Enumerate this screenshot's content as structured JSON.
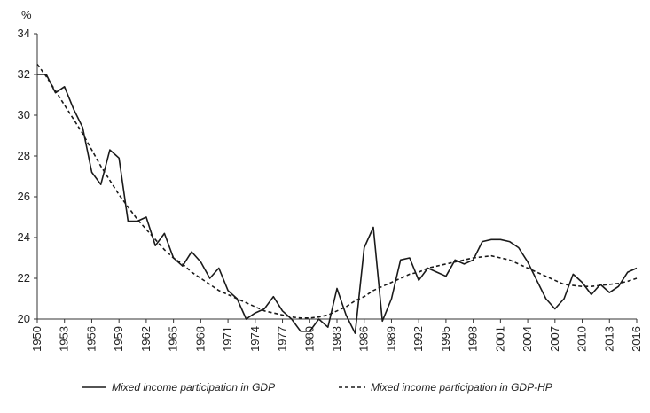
{
  "chart_data": {
    "type": "line",
    "title": "",
    "y_unit_label": "%",
    "xlabel": "",
    "ylabel": "%",
    "ylim": [
      20,
      34
    ],
    "yticks": [
      20,
      22,
      24,
      26,
      28,
      30,
      32,
      34
    ],
    "xlim": [
      1950,
      2016
    ],
    "xticks": [
      1950,
      1953,
      1956,
      1959,
      1962,
      1965,
      1968,
      1971,
      1974,
      1977,
      1980,
      1983,
      1986,
      1989,
      1992,
      1995,
      1998,
      2001,
      2004,
      2007,
      2010,
      2013,
      2016
    ],
    "grid": false,
    "legend_position": "bottom",
    "x": [
      1950,
      1951,
      1952,
      1953,
      1954,
      1955,
      1956,
      1957,
      1958,
      1959,
      1960,
      1961,
      1962,
      1963,
      1964,
      1965,
      1966,
      1967,
      1968,
      1969,
      1970,
      1971,
      1972,
      1973,
      1974,
      1975,
      1976,
      1977,
      1978,
      1979,
      1980,
      1981,
      1982,
      1983,
      1984,
      1985,
      1986,
      1987,
      1988,
      1989,
      1990,
      1991,
      1992,
      1993,
      1994,
      1995,
      1996,
      1997,
      1998,
      1999,
      2000,
      2001,
      2002,
      2003,
      2004,
      2005,
      2006,
      2007,
      2008,
      2009,
      2010,
      2011,
      2012,
      2013,
      2014,
      2015,
      2016
    ],
    "series": [
      {
        "name": "Mixed income participation in GDP",
        "style": "solid",
        "values": [
          32.0,
          32.0,
          31.1,
          31.4,
          30.3,
          29.4,
          27.2,
          26.6,
          28.3,
          27.9,
          24.8,
          24.8,
          25.0,
          23.6,
          24.2,
          23.0,
          22.6,
          23.3,
          22.8,
          22.0,
          22.5,
          21.4,
          21.0,
          20.0,
          20.3,
          20.5,
          21.1,
          20.4,
          20.0,
          19.4,
          19.4,
          20.0,
          19.6,
          21.5,
          20.2,
          19.3,
          23.5,
          24.5,
          19.9,
          21.0,
          22.9,
          23.0,
          21.9,
          22.5,
          22.3,
          22.1,
          22.9,
          22.7,
          22.9,
          23.8,
          23.9,
          23.9,
          23.8,
          23.5,
          22.8,
          21.9,
          21.0,
          20.5,
          21.0,
          22.2,
          21.8,
          21.2,
          21.7,
          21.3,
          21.6,
          22.3,
          22.5
        ]
      },
      {
        "name": "Mixed income participation in GDP-HP",
        "style": "dashed",
        "values": [
          32.5,
          31.9,
          31.2,
          30.5,
          29.8,
          29.1,
          28.3,
          27.5,
          26.8,
          26.1,
          25.5,
          24.9,
          24.4,
          23.9,
          23.4,
          23.0,
          22.7,
          22.3,
          22.0,
          21.7,
          21.4,
          21.2,
          21.0,
          20.8,
          20.6,
          20.4,
          20.3,
          20.2,
          20.1,
          20.05,
          20.05,
          20.1,
          20.2,
          20.4,
          20.6,
          20.9,
          21.1,
          21.4,
          21.6,
          21.8,
          22.0,
          22.2,
          22.3,
          22.5,
          22.6,
          22.7,
          22.8,
          22.9,
          23.0,
          23.05,
          23.1,
          23.0,
          22.9,
          22.7,
          22.5,
          22.3,
          22.1,
          21.9,
          21.7,
          21.65,
          21.6,
          21.6,
          21.65,
          21.7,
          21.75,
          21.85,
          22.0
        ]
      }
    ]
  },
  "legend": {
    "series1_label": "Mixed income participation in GDP",
    "series2_label": "Mixed income participation in GDP-HP"
  },
  "colors": {
    "line": "#1a1a1a",
    "axis": "#333333",
    "background": "#ffffff"
  }
}
